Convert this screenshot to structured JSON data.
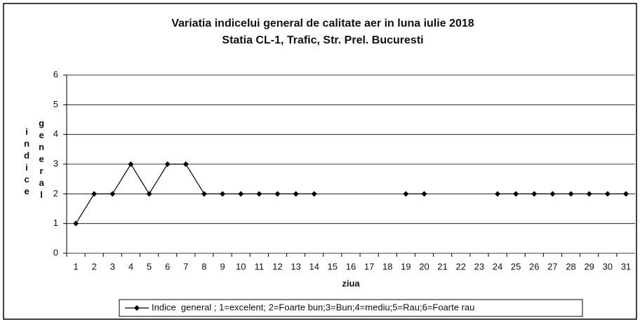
{
  "chart_data": {
    "type": "line",
    "title": "Variatia indicelui general de calitate aer in luna iulie 2018",
    "subtitle": "Statia CL-1, Trafic, Str. Prel. Bucuresti",
    "ylabel": [
      "indice",
      "general"
    ],
    "xlabel": "ziua",
    "categories": [
      "1",
      "2",
      "3",
      "4",
      "5",
      "6",
      "7",
      "8",
      "9",
      "10",
      "11",
      "12",
      "13",
      "14",
      "15",
      "16",
      "17",
      "18",
      "19",
      "20",
      "21",
      "22",
      "23",
      "24",
      "25",
      "26",
      "27",
      "28",
      "29",
      "30",
      "31"
    ],
    "series": [
      {
        "name": "Indice  general ; 1=excelent; 2=Foarte bun;3=Bun;4=mediu;5=Rau;6=Foarte rau",
        "color": "#000000",
        "values": [
          1,
          2,
          2,
          3,
          2,
          3,
          3,
          2,
          2,
          2,
          2,
          2,
          2,
          2,
          null,
          null,
          null,
          null,
          2,
          2,
          null,
          null,
          null,
          2,
          2,
          2,
          2,
          2,
          2,
          2,
          2
        ]
      }
    ],
    "ylim": [
      0,
      6
    ],
    "yticks": [
      0,
      1,
      2,
      3,
      4,
      5,
      6
    ],
    "grid": true,
    "legend": "bottom"
  }
}
